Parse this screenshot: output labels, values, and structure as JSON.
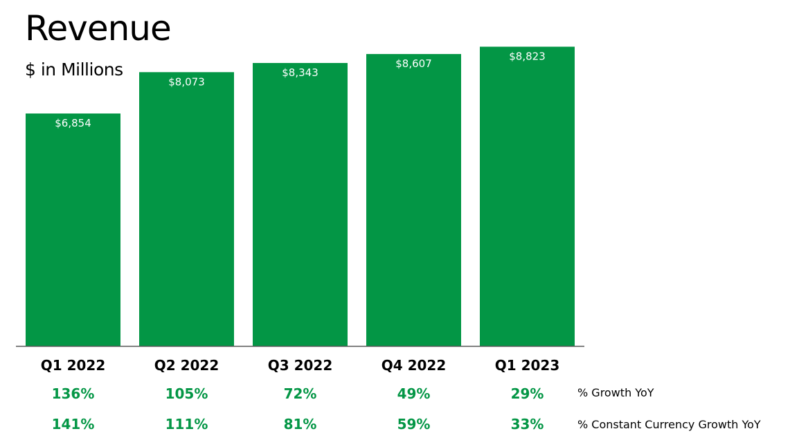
{
  "title": "Revenue",
  "subtitle": "$ in Millions",
  "colors": {
    "bar": "#039645",
    "growth_text": "#039645",
    "axis": "#555555"
  },
  "rows": {
    "growth_label": "% Growth YoY",
    "cc_growth_label": "% Constant Currency Growth YoY"
  },
  "chart_data": {
    "type": "bar",
    "title": "Revenue",
    "subtitle": "$ in Millions",
    "categories": [
      "Q1 2022",
      "Q2 2022",
      "Q3 2022",
      "Q4 2022",
      "Q1 2023"
    ],
    "values": [
      6854,
      8073,
      8343,
      8607,
      8823
    ],
    "value_labels": [
      "$6,854",
      "$8,073",
      "$8,343",
      "$8,607",
      "$8,823"
    ],
    "growth_yoy": [
      "136%",
      "105%",
      "72%",
      "49%",
      "29%"
    ],
    "cc_growth_yoy": [
      "141%",
      "111%",
      "81%",
      "59%",
      "33%"
    ],
    "ylim": [
      0,
      10200
    ],
    "grid": false,
    "legend": "none"
  }
}
